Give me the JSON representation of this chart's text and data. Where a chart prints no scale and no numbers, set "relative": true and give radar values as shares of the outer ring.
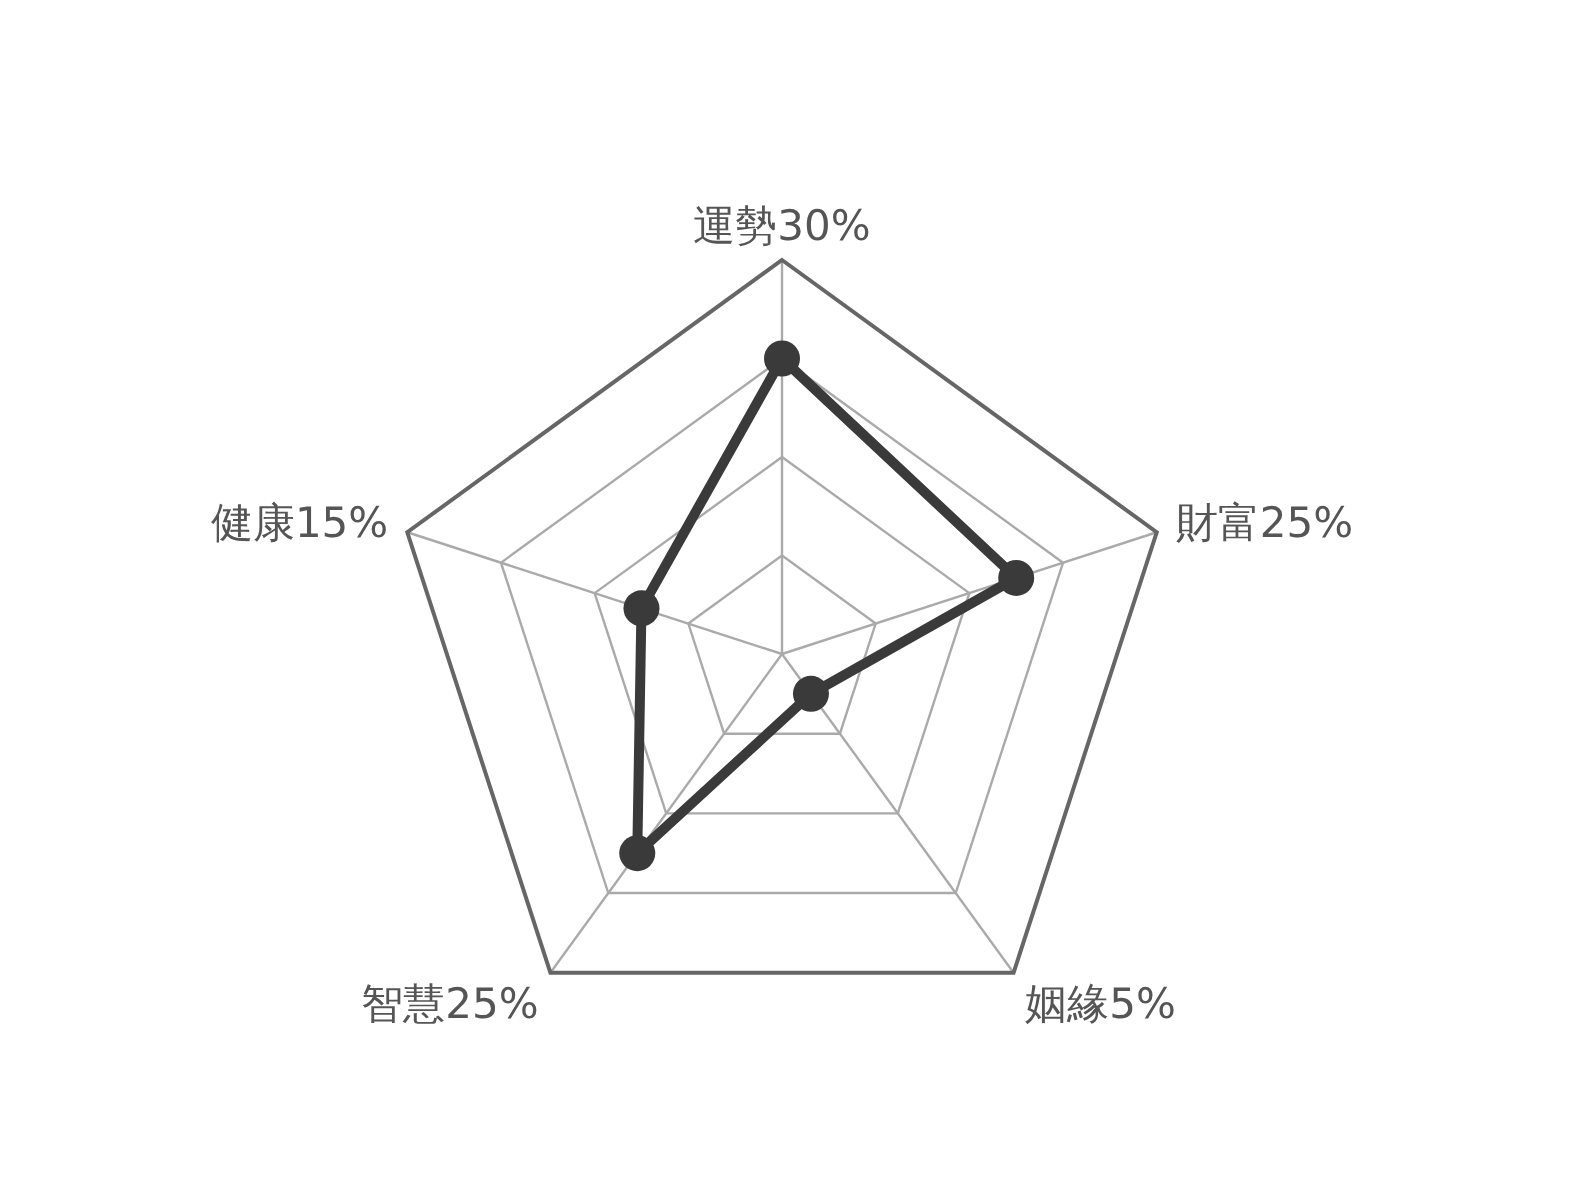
{
  "chart_data": {
    "type": "radar",
    "categories": [
      "運勢30%",
      "財富25%",
      "姻緣5%",
      "智慧25%",
      "健康15%"
    ],
    "series": [
      {
        "color": "#3a3a3a",
        "values": [
          0.75,
          0.625,
          0.125,
          0.625,
          0.375
        ]
      }
    ],
    "relative": true,
    "grid": true,
    "marker": "circle",
    "line_style": "solid"
  }
}
